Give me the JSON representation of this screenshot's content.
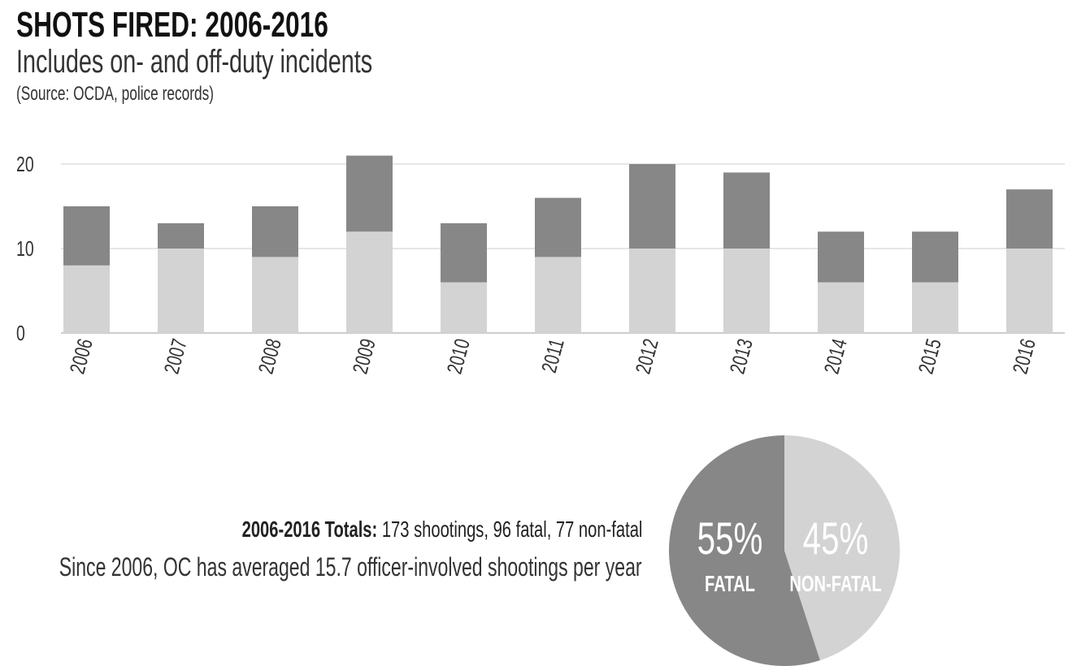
{
  "header": {
    "title": "SHOTS FIRED: 2006-2016",
    "subtitle": "Includes on- and off-duty incidents",
    "source": "(Source: OCDA, police records)"
  },
  "chart_data": [
    {
      "type": "bar",
      "stacked": true,
      "categories": [
        "2006",
        "2007",
        "2008",
        "2009",
        "2010",
        "2011",
        "2012",
        "2013",
        "2014",
        "2015",
        "2016"
      ],
      "series": [
        {
          "name": "fatal",
          "color": "#d3d3d3",
          "values": [
            8,
            10,
            9,
            12,
            6,
            9,
            10,
            10,
            6,
            6,
            10
          ]
        },
        {
          "name": "non-fatal",
          "color": "#878787",
          "values": [
            7,
            3,
            6,
            9,
            7,
            7,
            10,
            9,
            6,
            6,
            7
          ]
        }
      ],
      "yticks": [
        0,
        10,
        20
      ],
      "ylim": [
        0,
        22
      ],
      "grid": true,
      "title": "",
      "xlabel": "",
      "ylabel": ""
    },
    {
      "type": "pie",
      "slices": [
        {
          "label": "FATAL",
          "percent_label": "55%",
          "value": 55,
          "color": "#878787"
        },
        {
          "label": "NON-FATAL",
          "percent_label": "45%",
          "value": 45,
          "color": "#d3d3d3"
        }
      ]
    }
  ],
  "summary": {
    "totals_label": "2006-2016 Totals:",
    "totals_text": " 173 shootings, 96 fatal, 77 non-fatal",
    "average_text": "Since 2006, OC has averaged 15.7 officer-involved shootings per year"
  }
}
